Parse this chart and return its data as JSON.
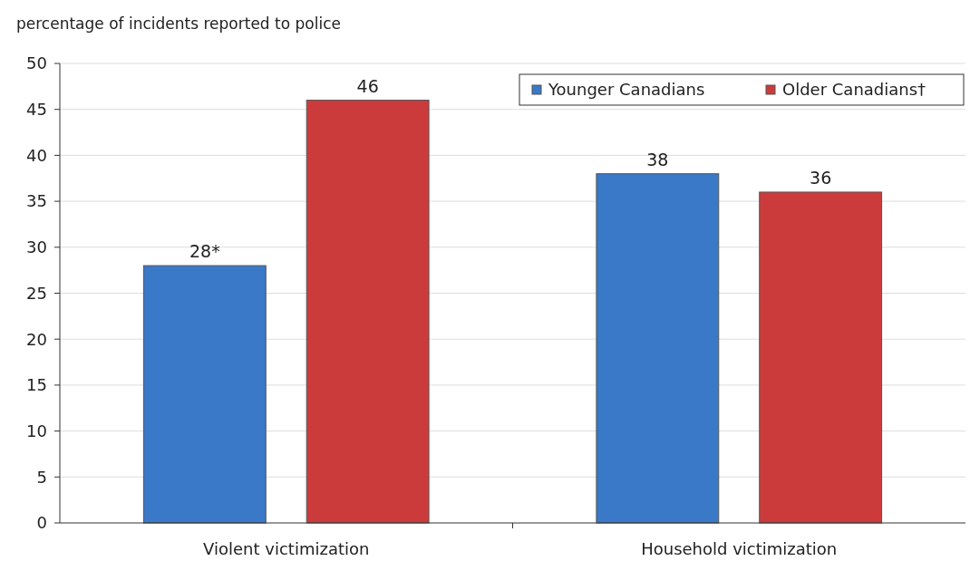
{
  "chart_data": {
    "type": "bar",
    "ylabel": "percentage of incidents reported to police",
    "categories": [
      "Violent victimization",
      "Household victimization"
    ],
    "series": [
      {
        "name": "Younger Canadians",
        "color": "#3a78c8",
        "values": [
          28,
          38
        ],
        "value_labels": [
          "28*",
          "38"
        ]
      },
      {
        "name": "Older Canadians†",
        "color": "#cc3b3b",
        "values": [
          46,
          36
        ],
        "value_labels": [
          "46",
          "36"
        ]
      }
    ],
    "ylim": [
      0,
      50
    ],
    "yticks": [
      0,
      5,
      10,
      15,
      20,
      25,
      30,
      35,
      40,
      45,
      50
    ],
    "grid": "y",
    "legend": "top right"
  }
}
